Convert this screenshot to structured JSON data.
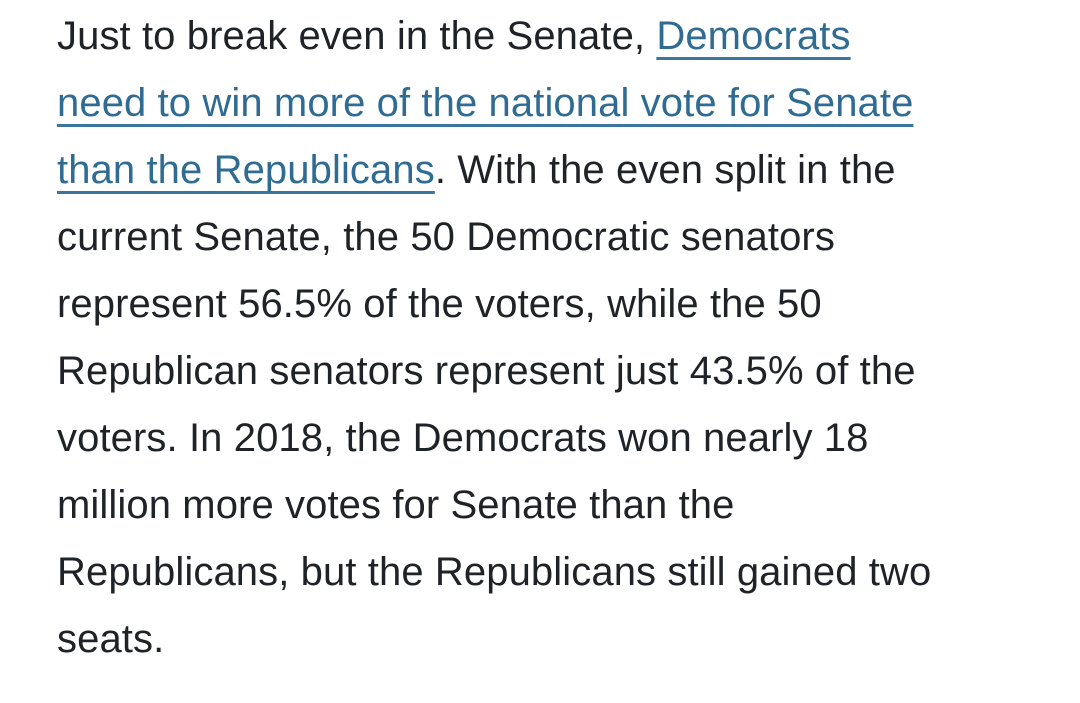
{
  "article": {
    "paragraph": {
      "text_before_link": "Just to break even in the Senate, ",
      "link_text": "Democrats\nneed to win more of the national vote for Senate\nthan the Republicans",
      "text_after_link": ". With the even split in the\ncurrent Senate, the 50 Democratic senators\nrepresent 56.5% of the voters, while the 50\nRepublican senators represent just 43.5% of the\nvoters. In 2018, the Democrats won nearly 18\nmillion more votes for Senate than the\nRepublicans, but the Republicans still gained two\nseats."
    },
    "facts": {
      "democratic_senators": 50,
      "republican_senators": 50,
      "democratic_voter_share_pct": 56.5,
      "republican_voter_share_pct": 43.5,
      "year_cited": 2018,
      "democrat_vote_margin_millions": 18,
      "republican_seats_gained": 2
    },
    "colors": {
      "background": "#ffffff",
      "body_text": "#1f2227",
      "link": "#2f6b92"
    }
  }
}
